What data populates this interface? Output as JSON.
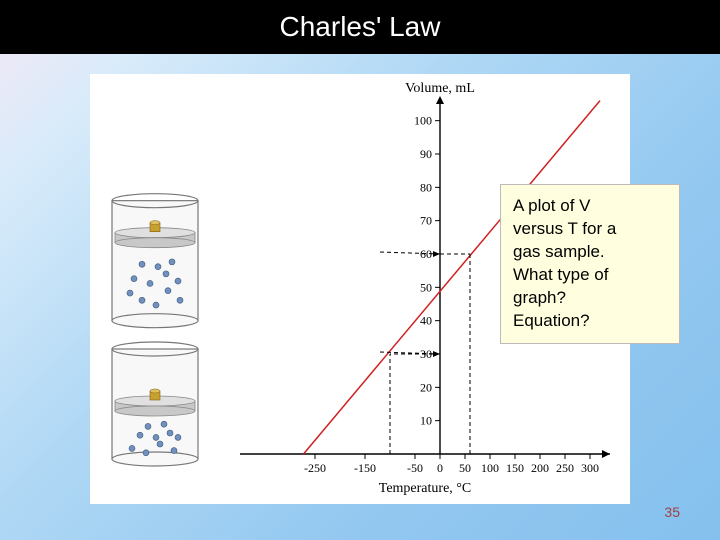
{
  "title": "Charles'  Law",
  "question": {
    "line1": "A plot of V",
    "line2": "versus T for a",
    "line3": "gas sample.",
    "line4": "What type of",
    "line5": "graph?",
    "line6": "Equation?"
  },
  "pageNumber": "35",
  "chart": {
    "type": "line",
    "y_axis_title": "Volume, mL",
    "x_axis_title": "Temperature, °C",
    "x_ticks": [
      -250,
      -150,
      -50,
      0,
      50,
      100,
      150,
      200,
      250,
      300
    ],
    "y_ticks": [
      10,
      20,
      30,
      40,
      50,
      60,
      70,
      80,
      90,
      100
    ],
    "x_min": -300,
    "x_max": 320,
    "y_min": 0,
    "y_max": 105,
    "line_color": "#d02020",
    "line_width": 1.5,
    "line_points": [
      [
        -273,
        0
      ],
      [
        320,
        106
      ]
    ],
    "dashed_color": "#000000",
    "dashed_pattern": "4,3",
    "callouts": [
      {
        "temp": -100,
        "vol": 30
      },
      {
        "temp": 60,
        "vol": 60
      }
    ],
    "axis_color": "#000000",
    "tick_length": 5
  },
  "cylinders": {
    "wall_stroke": "#777",
    "wall_fill": "#f8f8f8",
    "piston_fill": "#c8c8c8",
    "piston_top": "#e0e0e0",
    "weight_fill": "#c8a030",
    "particle_fill": "#7090c0",
    "particle_stroke": "#405878",
    "large": {
      "particles": [
        [
          18,
          58
        ],
        [
          30,
          52
        ],
        [
          44,
          48
        ],
        [
          56,
          60
        ],
        [
          68,
          52
        ],
        [
          22,
          70
        ],
        [
          38,
          66
        ],
        [
          54,
          74
        ],
        [
          66,
          68
        ],
        [
          46,
          80
        ],
        [
          30,
          82
        ],
        [
          60,
          84
        ]
      ]
    },
    "small": {
      "particles": [
        [
          20,
          66
        ],
        [
          34,
          62
        ],
        [
          48,
          70
        ],
        [
          62,
          64
        ],
        [
          28,
          78
        ],
        [
          44,
          76
        ],
        [
          58,
          80
        ],
        [
          36,
          86
        ],
        [
          52,
          88
        ],
        [
          66,
          76
        ]
      ]
    }
  }
}
